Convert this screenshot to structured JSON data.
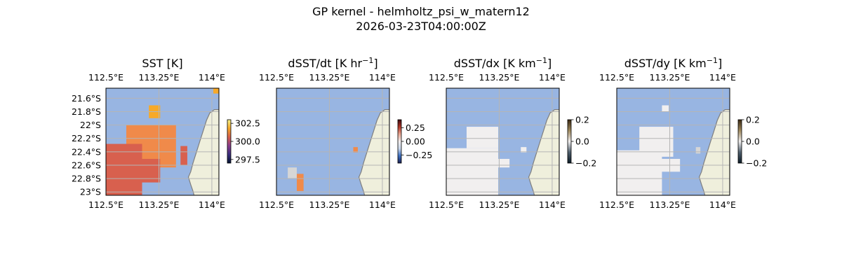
{
  "figure": {
    "title_line1": "GP kernel - helmholtz_psi_w_matern12",
    "title_line2": "2026-03-23T04:00:00Z"
  },
  "colors": {
    "ocean": "#98b5e2",
    "land": "#efefdc",
    "coast": "#7f7f7f",
    "grid": "#b5b5b5",
    "sst_patch": "#f08a4a",
    "sst_warm": "#f7a928",
    "sst_dark": "#d8604e",
    "deriv_light": "#f1efef",
    "deriv_gray": "#d6d6d6"
  },
  "chart_data": [
    {
      "type": "heatmap",
      "title": "SST [K]",
      "top_tick_labels": [
        "112.5°E",
        "113.25°E",
        "114°E"
      ],
      "bottom_tick_labels": [
        "112.5°E",
        "113.25°E",
        "114°E"
      ],
      "left_tick_labels": [
        "21.6°S",
        "21.8°S",
        "22°S",
        "22.2°S",
        "22.4°S",
        "22.6°S",
        "22.8°S",
        "23°S"
      ],
      "lon_ticks": [
        112.5,
        113.25,
        114.0
      ],
      "lat_ticks": [
        -21.6,
        -21.8,
        -22.0,
        -22.2,
        -22.4,
        -22.6,
        -22.8,
        -23.0
      ],
      "xlim": [
        112.5,
        114.1
      ],
      "ylim": [
        -23.05,
        -21.45
      ],
      "grid": true,
      "colorbar": {
        "range": [
          297.0,
          303.0
        ],
        "tick_values": [
          297.5,
          300.0,
          302.5
        ],
        "tick_labels": [
          "297.5",
          "300.0",
          "302.5"
        ],
        "colormap": "thermal",
        "stops": [
          "#041433",
          "#3b2f7f",
          "#8b3e8e",
          "#d8604e",
          "#f7a928",
          "#f4f28a"
        ]
      }
    },
    {
      "type": "heatmap",
      "title": "dSST/dt [K hr",
      "title_sup": "−1",
      "title_end": "]",
      "top_tick_labels": [
        "112.5°E",
        "113.25°E",
        "114°E"
      ],
      "bottom_tick_labels": [
        "112.5°E",
        "113.25°E",
        "114°E"
      ],
      "lon_ticks": [
        112.5,
        113.25,
        114.0
      ],
      "lat_ticks": [
        -21.6,
        -21.8,
        -22.0,
        -22.2,
        -22.4,
        -22.6,
        -22.8,
        -23.0
      ],
      "xlim": [
        112.5,
        114.1
      ],
      "ylim": [
        -23.05,
        -21.45
      ],
      "grid": true,
      "colorbar": {
        "range": [
          -0.4,
          0.4
        ],
        "tick_values": [
          0.25,
          0.0,
          -0.25
        ],
        "tick_labels": [
          "0.25",
          "0.00",
          "−0.25"
        ],
        "colormap": "balance",
        "stops": [
          "#1b2052",
          "#3a6fc2",
          "#c9d6ea",
          "#f2eeee",
          "#e8a591",
          "#b33727",
          "#3d0a12"
        ]
      }
    },
    {
      "type": "heatmap",
      "title": "dSST/dx [K km",
      "title_sup": "−1",
      "title_end": "]",
      "top_tick_labels": [
        "112.5°E",
        "113.25°E",
        "114°E"
      ],
      "bottom_tick_labels": [
        "112.5°E",
        "113.25°E",
        "114°E"
      ],
      "lon_ticks": [
        112.5,
        113.25,
        114.0
      ],
      "lat_ticks": [
        -21.6,
        -21.8,
        -22.0,
        -22.2,
        -22.4,
        -22.6,
        -22.8,
        -23.0
      ],
      "xlim": [
        112.5,
        114.1
      ],
      "ylim": [
        -23.05,
        -21.45
      ],
      "grid": true,
      "colorbar": {
        "range": [
          -0.2,
          0.2
        ],
        "tick_values": [
          0.2,
          0.0,
          -0.2
        ],
        "tick_labels": [
          "0.2",
          "0.0",
          "−0.2"
        ],
        "colormap": "diff",
        "stops": [
          "#0b1a26",
          "#50606e",
          "#f1efef",
          "#a08a5e",
          "#3a2810"
        ]
      }
    },
    {
      "type": "heatmap",
      "title": "dSST/dy [K km",
      "title_sup": "−1",
      "title_end": "]",
      "top_tick_labels": [
        "112.5°E",
        "113.25°E",
        "114°E"
      ],
      "bottom_tick_labels": [
        "112.5°E",
        "113.25°E",
        "114°E"
      ],
      "lon_ticks": [
        112.5,
        113.25,
        114.0
      ],
      "lat_ticks": [
        -21.6,
        -21.8,
        -22.0,
        -22.2,
        -22.4,
        -22.6,
        -22.8,
        -23.0
      ],
      "xlim": [
        112.5,
        114.1
      ],
      "ylim": [
        -23.05,
        -21.45
      ],
      "grid": true,
      "colorbar": {
        "range": [
          -0.2,
          0.2
        ],
        "tick_values": [
          0.2,
          0.0,
          -0.2
        ],
        "tick_labels": [
          "0.2",
          "0.0",
          "−0.2"
        ],
        "colormap": "diff",
        "stops": [
          "#0b1a26",
          "#50606e",
          "#f1efef",
          "#a08a5e",
          "#3a2810"
        ]
      }
    }
  ]
}
